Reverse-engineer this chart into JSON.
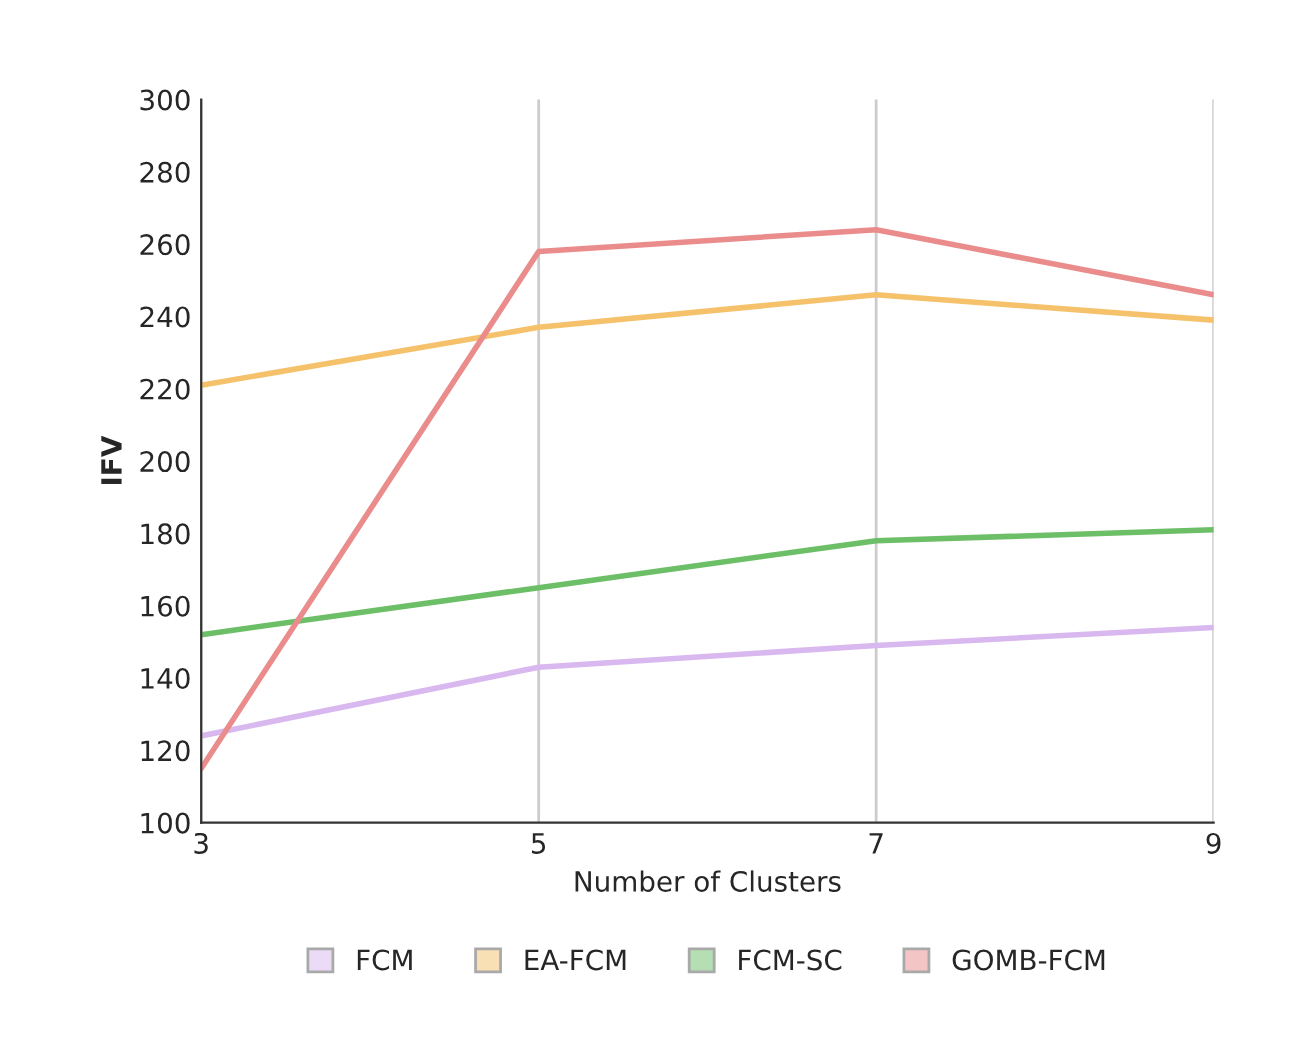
{
  "chart_data": {
    "type": "line",
    "xlabel": "Number of Clusters",
    "ylabel": "IFV",
    "x": [
      3,
      5,
      7,
      9
    ],
    "series": [
      {
        "name": "FCM",
        "color": "#d9b8f0",
        "values": [
          124,
          143,
          149,
          154
        ]
      },
      {
        "name": "EA-FCM",
        "color": "#f5c26b",
        "values": [
          221,
          237,
          246,
          239
        ]
      },
      {
        "name": "FCM-SC",
        "color": "#6dbf67",
        "values": [
          152,
          165,
          178,
          181
        ]
      },
      {
        "name": "GOMB-FCM",
        "color": "#eb8c8c",
        "values": [
          115,
          258,
          264,
          246
        ]
      }
    ],
    "xlim": [
      3,
      9
    ],
    "xticks": [
      3,
      5,
      7,
      9
    ],
    "ylim": [
      100,
      300
    ],
    "yticks": [
      100,
      120,
      140,
      160,
      180,
      200,
      220,
      240,
      260,
      280,
      300
    ],
    "grid": "x",
    "legend": "bottom",
    "marker": "none",
    "line_style": "solid"
  }
}
